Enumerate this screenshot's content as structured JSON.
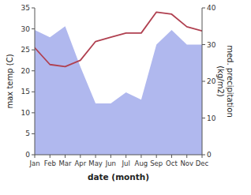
{
  "chart_data": {
    "type": "line",
    "categories": [
      "Jan",
      "Feb",
      "Mar",
      "Apr",
      "May",
      "Jun",
      "Jul",
      "Aug",
      "Sep",
      "Oct",
      "Nov",
      "Dec"
    ],
    "xlabel": "date (month)",
    "ylabel": "max temp (C)",
    "y2label": "med. precipitation\n (kg/m2)",
    "ylim": [
      0,
      35
    ],
    "yticks": [
      0,
      5,
      10,
      15,
      20,
      25,
      30,
      35
    ],
    "y2lim": [
      0,
      40
    ],
    "y2ticks": [
      0,
      10,
      20,
      30,
      40
    ],
    "grid": false,
    "series": [
      {
        "type": "area",
        "axis": "y2",
        "color": "#b0b8ee",
        "values": [
          34,
          32,
          35,
          24,
          14,
          14,
          17,
          15,
          30,
          34,
          30,
          30
        ]
      },
      {
        "type": "line",
        "color": "#b04050",
        "values": [
          25.5,
          21.5,
          21.0,
          22.5,
          27.0,
          28.0,
          29.0,
          29.0,
          34.0,
          33.5,
          30.5,
          29.5
        ]
      }
    ]
  }
}
